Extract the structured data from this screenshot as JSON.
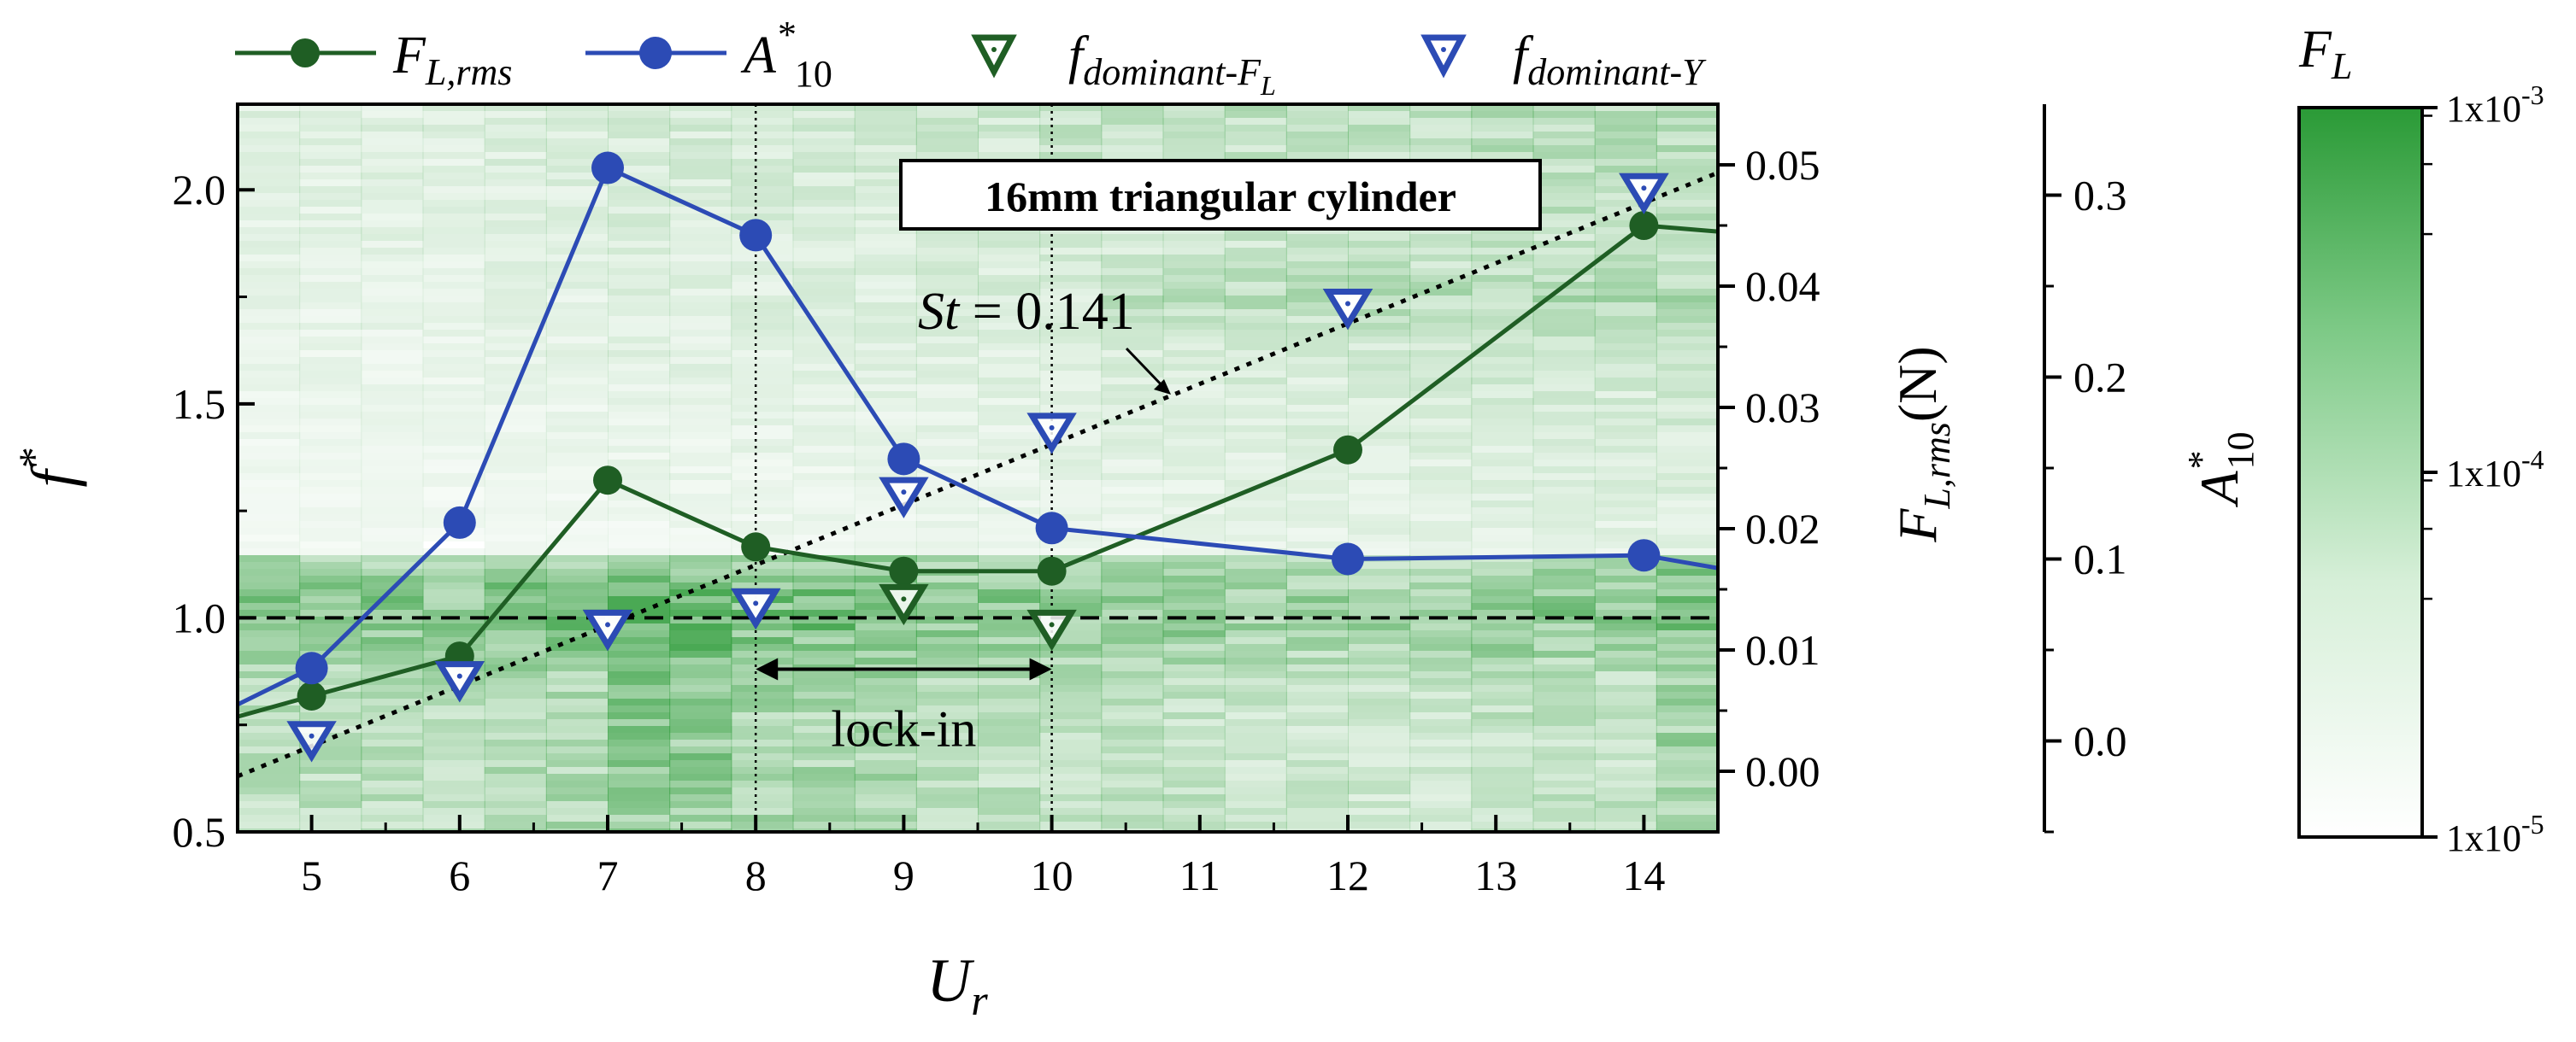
{
  "chart_data": {
    "type": "line",
    "title": "16mm triangular cylinder",
    "xlabel": "U",
    "xlabel_sub": "r",
    "ylabel": "f",
    "ylabel_sup": "*",
    "xlim": [
      4.5,
      14.5
    ],
    "ylim": [
      0.5,
      2.2
    ],
    "x_ticks": [
      "5",
      "6",
      "7",
      "8",
      "9",
      "10",
      "11",
      "12",
      "13",
      "14"
    ],
    "y_ticks": [
      "0.5",
      "1.0",
      "1.5",
      "2.0"
    ],
    "y_tick_values": [
      0.5,
      1.0,
      1.5,
      2.0
    ],
    "right_axis_1": {
      "label": "F",
      "label_sub": "L,rms",
      "label_suffix": "(N)",
      "lim": [
        -0.005,
        0.055
      ],
      "ticks": [
        "0.00",
        "0.01",
        "0.02",
        "0.03",
        "0.04",
        "0.05"
      ],
      "tick_values": [
        0.0,
        0.01,
        0.02,
        0.03,
        0.04,
        0.05
      ]
    },
    "right_axis_2": {
      "label": "A",
      "label_sup": "*",
      "label_sub": "10",
      "lim": [
        -0.05,
        0.35
      ],
      "ticks": [
        "0.0",
        "0.1",
        "0.2",
        "0.3"
      ],
      "tick_values": [
        0.0,
        0.1,
        0.2,
        0.3
      ]
    },
    "series": [
      {
        "name": "F_L,rms",
        "axis": "right_axis_1",
        "color": "#1f5e24",
        "x": [
          4.5,
          5,
          6,
          7,
          8,
          9,
          10,
          12,
          14,
          14.5
        ],
        "values": [
          0.0045,
          0.0062,
          0.0095,
          0.024,
          0.0185,
          0.0165,
          0.0165,
          0.0265,
          0.045,
          0.0445
        ],
        "marker_x": [
          5,
          6,
          7,
          8,
          9,
          10,
          12,
          14
        ]
      },
      {
        "name": "A*10",
        "axis": "right_axis_2",
        "color": "#2c4bb5",
        "x": [
          4.5,
          5,
          6,
          7,
          8,
          9,
          10,
          12,
          14,
          14.5
        ],
        "values": [
          0.02,
          0.04,
          0.12,
          0.315,
          0.278,
          0.155,
          0.117,
          0.1,
          0.102,
          0.095
        ],
        "marker_x": [
          5,
          6,
          7,
          8,
          9,
          10,
          12,
          14
        ]
      },
      {
        "name": "f_dominant-F_L",
        "axis": "left",
        "color": "#1f5e24",
        "marker": "triangle-down",
        "x": [
          6,
          7,
          8,
          9,
          10,
          12,
          14
        ],
        "values": [
          0.86,
          0.98,
          1.03,
          1.04,
          0.98,
          1.73,
          2.0
        ]
      },
      {
        "name": "f_dominant-Y",
        "axis": "left",
        "color": "#2c4bb5",
        "marker": "triangle-down",
        "x": [
          5,
          6,
          7,
          8,
          9,
          10,
          12,
          14
        ],
        "values": [
          0.72,
          0.86,
          0.98,
          1.03,
          1.29,
          1.44,
          1.73,
          2.0
        ]
      }
    ],
    "strouhal_line": {
      "label_italic": "St",
      "label_rest": " = 0.141",
      "x": [
        4.5,
        14.5
      ],
      "y": [
        0.63,
        2.04
      ]
    },
    "reference_line_y": 1.0,
    "lock_in": {
      "label": "lock-in",
      "x_start": 8,
      "x_end": 10,
      "y": 0.88
    },
    "colorbar": {
      "label": "F",
      "label_sub": "L",
      "ticks": [
        "1x10",
        "1x10",
        "1x10"
      ],
      "tick_exponents": [
        "-3",
        "-4",
        "-5"
      ],
      "color_high": "#2a9a36",
      "color_low": "#ffffff"
    },
    "legend": [
      {
        "label": "F",
        "sub": "L,rms",
        "color": "#1f5e24",
        "marker": "circle"
      },
      {
        "label": "A",
        "sup": "*",
        "sub": "10",
        "color": "#2c4bb5",
        "marker": "circle"
      },
      {
        "label": "f",
        "sub": "dominant-F",
        "subsub": "L",
        "color": "#1f5e24",
        "marker": "triangle-down"
      },
      {
        "label": "f",
        "sub": "dominant-Y",
        "color": "#2c4bb5",
        "marker": "triangle-down"
      }
    ]
  }
}
